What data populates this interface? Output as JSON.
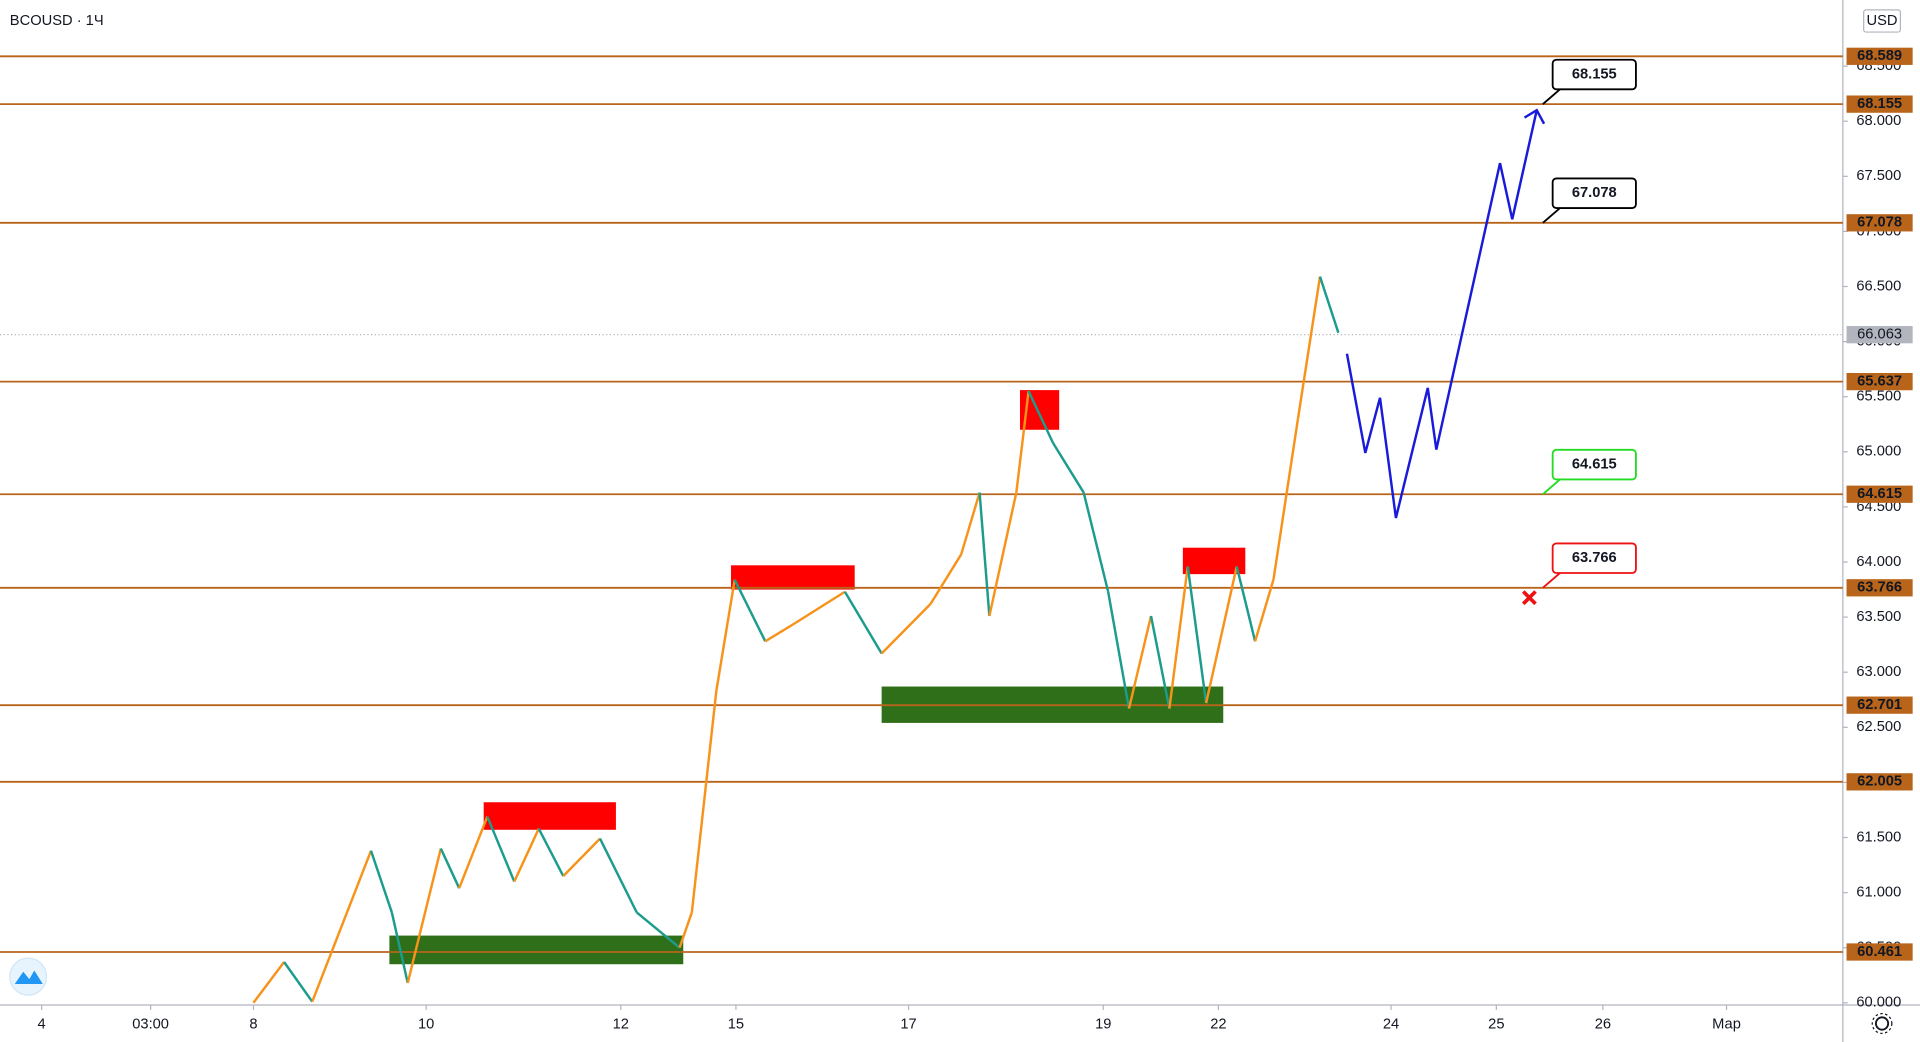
{
  "chart_data": {
    "type": "line",
    "title": "BCOUSD · 1Ч",
    "currency": "USD",
    "xlim": [
      0,
      1505
    ],
    "ylim": [
      59.98,
      69.1
    ],
    "xticks": [
      {
        "value": 34,
        "label": "4"
      },
      {
        "value": 123,
        "label": "03:00"
      },
      {
        "value": 207,
        "label": "8"
      },
      {
        "value": 348,
        "label": "10"
      },
      {
        "value": 507,
        "label": "12"
      },
      {
        "value": 601,
        "label": "15"
      },
      {
        "value": 742,
        "label": "17"
      },
      {
        "value": 901,
        "label": "19"
      },
      {
        "value": 995,
        "label": "22"
      },
      {
        "value": 1136,
        "label": "24"
      },
      {
        "value": 1222,
        "label": "25"
      },
      {
        "value": 1309,
        "label": "26"
      },
      {
        "value": 1410,
        "label": "Мар"
      }
    ],
    "yticks": [
      {
        "value": 60,
        "label": "60.000"
      },
      {
        "value": 60.5,
        "label": "60.500"
      },
      {
        "value": 61,
        "label": "61.000"
      },
      {
        "value": 61.5,
        "label": "61.500"
      },
      {
        "value": 62,
        "label": "62.000"
      },
      {
        "value": 62.5,
        "label": "62.500"
      },
      {
        "value": 63,
        "label": "63.000"
      },
      {
        "value": 63.5,
        "label": "63.500"
      },
      {
        "value": 64,
        "label": "64.000"
      },
      {
        "value": 64.5,
        "label": "64.500"
      },
      {
        "value": 65,
        "label": "65.000"
      },
      {
        "value": 65.5,
        "label": "65.500"
      },
      {
        "value": 66,
        "label": "66.000"
      },
      {
        "value": 66.5,
        "label": "66.500"
      },
      {
        "value": 67,
        "label": "67.000"
      },
      {
        "value": 67.5,
        "label": "67.500"
      },
      {
        "value": 68,
        "label": "68.000"
      },
      {
        "value": 68.5,
        "label": "68.500"
      }
    ],
    "series": [
      {
        "name": "price",
        "up_color": "#f7931a",
        "down_color": "#1b9c8c",
        "x": [
          207,
          232,
          255,
          303,
          320,
          333,
          360,
          375,
          398,
          420,
          440,
          460,
          490,
          520,
          555,
          565,
          585,
          600,
          625,
          650,
          690,
          720,
          760,
          785,
          800,
          808,
          830,
          840,
          860,
          885,
          905,
          922,
          940,
          955,
          970,
          985,
          1010,
          1025,
          1040,
          1060,
          1078,
          1093
        ],
        "values": [
          60.0,
          60.37,
          60.01,
          61.38,
          60.82,
          60.18,
          61.4,
          61.04,
          61.69,
          61.1,
          61.58,
          61.15,
          61.49,
          60.82,
          60.5,
          60.82,
          62.83,
          63.84,
          63.28,
          63.45,
          63.73,
          63.17,
          63.62,
          64.07,
          64.63,
          63.51,
          64.63,
          65.55,
          65.08,
          64.63,
          63.73,
          62.67,
          63.51,
          62.67,
          63.96,
          62.72,
          63.96,
          63.28,
          63.84,
          65.3,
          66.59,
          66.08
        ]
      },
      {
        "name": "forecast",
        "color": "#1a1adb",
        "x": [
          1100,
          1115,
          1127,
          1140,
          1166,
          1173,
          1225,
          1235,
          1255
        ],
        "values": [
          65.89,
          64.99,
          65.49,
          64.4,
          65.58,
          65.02,
          67.62,
          67.11,
          68.1
        ]
      }
    ],
    "zones": [
      {
        "color": "#ff0000",
        "x": [
          597,
          698
        ],
        "values": [
          63.97,
          63.75
        ]
      },
      {
        "color": "#ff0000",
        "x": [
          395,
          503
        ],
        "values": [
          61.82,
          61.57
        ]
      },
      {
        "color": "#ff0000",
        "x": [
          833,
          865
        ],
        "values": [
          65.56,
          65.2
        ]
      },
      {
        "color": "#ff0000",
        "x": [
          966,
          1017
        ],
        "values": [
          64.13,
          63.89
        ]
      },
      {
        "color": "#2f6f1a",
        "x": [
          318,
          558
        ],
        "values": [
          60.61,
          60.35
        ]
      },
      {
        "color": "#2f6f1a",
        "x": [
          720,
          999
        ],
        "values": [
          62.87,
          62.54
        ]
      }
    ],
    "levels": {
      "color": "#b8651b",
      "values": [
        68.589,
        68.155,
        67.078,
        65.637,
        64.615,
        63.766,
        62.701,
        62.005,
        60.461
      ],
      "value_labels": [
        "68.589",
        "68.155",
        "67.078",
        "65.637",
        "64.615",
        "63.766",
        "62.701",
        "62.005",
        "60.461"
      ]
    },
    "last_price": {
      "value": 66.063,
      "label": "66.063",
      "color": "#b2b5be"
    },
    "callouts": [
      {
        "label": "68.155",
        "value": 68.155,
        "color": "#000000"
      },
      {
        "label": "67.078",
        "value": 67.078,
        "color": "#000000"
      },
      {
        "label": "64.615",
        "value": 64.615,
        "color": "#22dd22"
      },
      {
        "label": "63.766",
        "value": 63.766,
        "color": "#ee1111"
      }
    ]
  }
}
